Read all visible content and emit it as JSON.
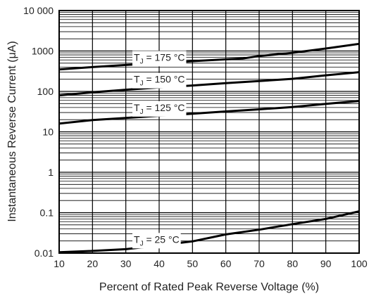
{
  "chart_data": {
    "type": "line",
    "title": "",
    "xlabel": "Percent of Rated Peak Reverse Voltage (%)",
    "ylabel": "Instantaneous Reverse Current (μA)",
    "x_scale": "linear",
    "y_scale": "log",
    "xlim": [
      10,
      100
    ],
    "ylim": [
      0.01,
      10000
    ],
    "x_ticks": [
      10,
      20,
      30,
      40,
      50,
      60,
      70,
      80,
      90,
      100
    ],
    "x_tick_labels": [
      "10",
      "20",
      "30",
      "40",
      "50",
      "60",
      "70",
      "80",
      "90",
      "100"
    ],
    "y_ticks": [
      0.01,
      0.1,
      1,
      10,
      100,
      1000,
      10000
    ],
    "y_tick_labels": [
      "0.01",
      "0.1",
      "1",
      "10",
      "100",
      "1000",
      "10 000"
    ],
    "grid": true,
    "line_color": "#000000",
    "series": [
      {
        "name": "T_J = 175 °C",
        "label_main": "T",
        "label_sub": "J",
        "label_rest": " = 175 °C",
        "label_x": 40,
        "label_y": 700,
        "x": [
          10,
          20,
          30,
          40,
          50,
          60,
          65,
          70,
          80,
          90,
          100
        ],
        "y": [
          350,
          400,
          450,
          500,
          560,
          620,
          650,
          750,
          900,
          1150,
          1500
        ]
      },
      {
        "name": "T_J = 150 °C",
        "label_main": "T",
        "label_sub": "J",
        "label_rest": " = 150 °C",
        "label_x": 40,
        "label_y": 200,
        "x": [
          10,
          20,
          30,
          40,
          50,
          60,
          70,
          80,
          90,
          100
        ],
        "y": [
          80,
          95,
          110,
          125,
          140,
          160,
          180,
          205,
          250,
          300
        ]
      },
      {
        "name": "T_J = 125 °C",
        "label_main": "T",
        "label_sub": "J",
        "label_rest": " = 125 °C",
        "label_x": 40,
        "label_y": 40,
        "x": [
          10,
          20,
          30,
          40,
          50,
          60,
          70,
          80,
          90,
          100
        ],
        "y": [
          16,
          19.5,
          22,
          25,
          28,
          32,
          36,
          41,
          49,
          58
        ]
      },
      {
        "name": "T_J = 25 °C",
        "label_main": "T",
        "label_sub": "J",
        "label_rest": " = 25 °C",
        "label_x": 40,
        "label_y": 0.022,
        "x": [
          10,
          20,
          30,
          40,
          50,
          60,
          70,
          80,
          90,
          100
        ],
        "y": [
          0.0105,
          0.0113,
          0.0125,
          0.0155,
          0.0195,
          0.029,
          0.038,
          0.052,
          0.07,
          0.108
        ]
      }
    ]
  }
}
